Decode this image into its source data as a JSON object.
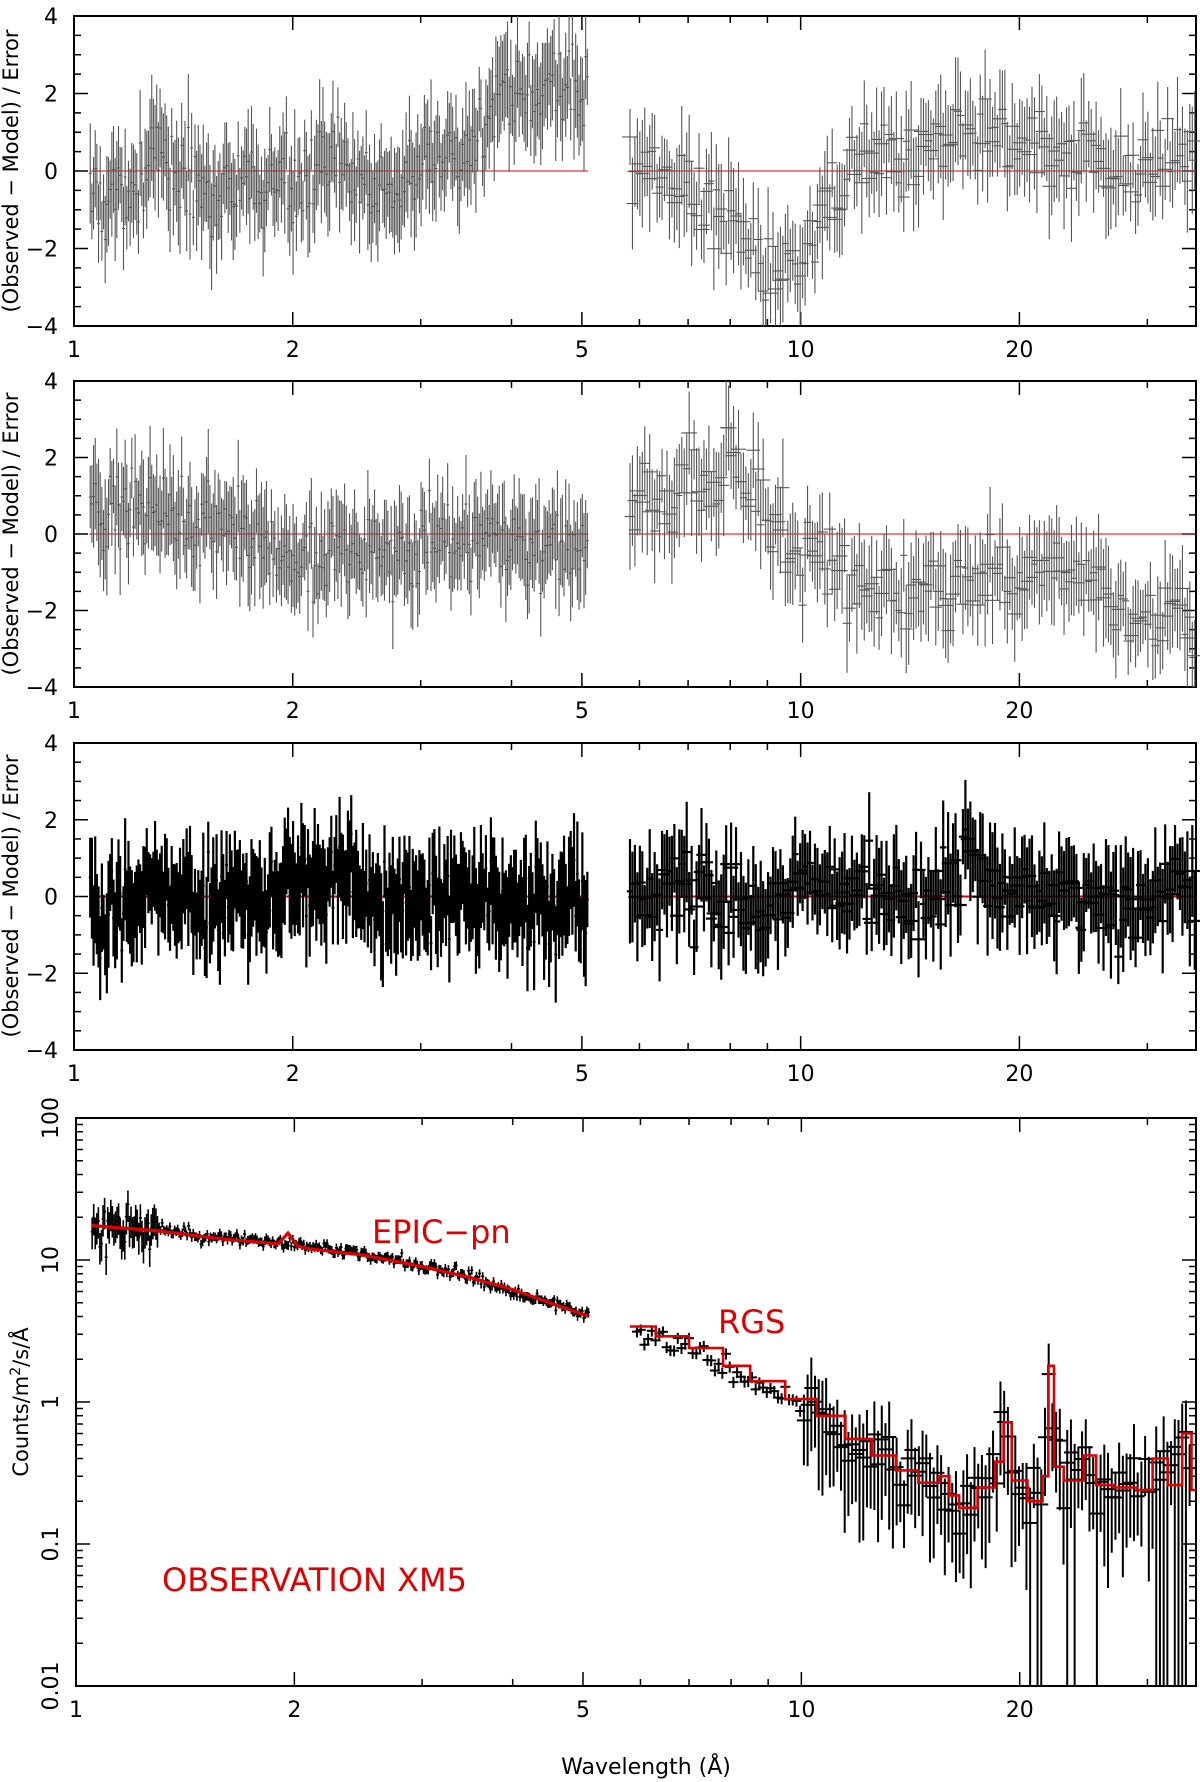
{
  "figure": {
    "x_label": "Wavelength (Å)",
    "residual_y_label": "(Observed − Model) / Error",
    "spectrum_y_label_html": "Counts/m²/s/Å",
    "annotations": {
      "epic": "EPIC−pn",
      "rgs": "RGS",
      "observation": "OBSERVATION XM5"
    },
    "colors": {
      "data": "#000000",
      "model": "#e00000",
      "residual_gray": "#555555"
    }
  },
  "chart_data": [
    {
      "type": "scatter",
      "panel": "residuals-1",
      "style": "gray error bars, thin",
      "xlabel": "",
      "ylabel": "(Observed − Model) / Error",
      "xscale": "log",
      "xlim": [
        1,
        35
      ],
      "ylim": [
        -4,
        4
      ],
      "xticks": [
        1,
        2,
        5,
        10,
        20
      ],
      "yticks": [
        -4,
        -2,
        0,
        2,
        4
      ],
      "zero_line": 0,
      "series": [
        {
          "instrument": "EPIC-pn",
          "x_range": [
            1.05,
            5.1
          ],
          "x": [
            1.1,
            1.3,
            1.5,
            1.7,
            2.0,
            2.3,
            2.6,
            3.0,
            3.4,
            3.8,
            4.2,
            4.6,
            5.0
          ],
          "y": [
            -0.8,
            0.3,
            -0.4,
            -0.6,
            -0.2,
            0.1,
            -0.5,
            0.0,
            0.4,
            1.6,
            2.0,
            2.4,
            2.0
          ]
        },
        {
          "instrument": "RGS",
          "x_range": [
            5.8,
            35
          ],
          "x": [
            6,
            7,
            8,
            9,
            10,
            12,
            14,
            17,
            20,
            24,
            28,
            32
          ],
          "y": [
            0.2,
            -0.5,
            -1.5,
            -2.5,
            -2.0,
            0.2,
            0.5,
            1.2,
            0.8,
            0.3,
            -0.2,
            0.2
          ]
        }
      ]
    },
    {
      "type": "scatter",
      "panel": "residuals-2",
      "style": "gray error bars, thin",
      "xlabel": "",
      "ylabel": "(Observed − Model) / Error",
      "xscale": "log",
      "xlim": [
        1,
        35
      ],
      "ylim": [
        -4,
        4
      ],
      "xticks": [
        1,
        2,
        5,
        10,
        20
      ],
      "yticks": [
        -4,
        -2,
        0,
        2,
        4
      ],
      "zero_line": 0,
      "series": [
        {
          "instrument": "EPIC-pn",
          "x_range": [
            1.05,
            5.1
          ],
          "x": [
            1.1,
            1.3,
            1.5,
            1.7,
            2.0,
            2.3,
            2.6,
            3.0,
            3.4,
            3.8,
            4.2,
            4.6,
            5.0
          ],
          "y": [
            0.6,
            0.8,
            0.3,
            0.0,
            -0.6,
            -0.3,
            -0.4,
            -0.5,
            -0.2,
            -0.2,
            -0.3,
            -0.1,
            -0.4
          ]
        },
        {
          "instrument": "RGS",
          "x_range": [
            5.8,
            35
          ],
          "x": [
            6,
            7,
            8,
            9,
            10,
            12,
            14,
            17,
            20,
            24,
            28,
            32
          ],
          "y": [
            0.5,
            1.2,
            1.8,
            0.5,
            -0.5,
            -1.2,
            -1.8,
            -1.0,
            -1.2,
            -0.8,
            -2.0,
            -2.2
          ]
        }
      ]
    },
    {
      "type": "scatter",
      "panel": "residuals-3",
      "style": "black error bars, thick",
      "xlabel": "",
      "ylabel": "(Observed − Model) / Error",
      "xscale": "log",
      "xlim": [
        1,
        35
      ],
      "ylim": [
        -4,
        4
      ],
      "xticks": [
        1,
        2,
        5,
        10,
        20
      ],
      "yticks": [
        -4,
        -2,
        0,
        2,
        4
      ],
      "zero_line": 0,
      "series": [
        {
          "instrument": "EPIC-pn",
          "x_range": [
            1.05,
            5.1
          ],
          "x": [
            1.1,
            1.3,
            1.5,
            1.7,
            2.0,
            2.3,
            2.6,
            3.0,
            3.4,
            3.8,
            4.2,
            4.6,
            5.0
          ],
          "y": [
            -0.4,
            0.4,
            0.0,
            -0.2,
            0.3,
            0.5,
            0.0,
            -0.3,
            0.1,
            0.2,
            -0.2,
            -0.3,
            -0.1
          ]
        },
        {
          "instrument": "RGS",
          "x_range": [
            5.8,
            35
          ],
          "x": [
            6,
            7,
            8,
            9,
            10,
            12,
            14,
            17,
            20,
            24,
            28,
            32
          ],
          "y": [
            0.0,
            0.3,
            -0.2,
            -0.4,
            0.2,
            0.4,
            -0.1,
            0.6,
            0.2,
            -0.3,
            -0.4,
            0.1
          ]
        }
      ]
    },
    {
      "type": "line",
      "panel": "spectrum",
      "xlabel": "Wavelength (Å)",
      "ylabel": "Counts/m²/s/Å",
      "xscale": "log",
      "yscale": "log",
      "xlim": [
        1,
        35
      ],
      "ylim": [
        0.01,
        100
      ],
      "xticks": [
        1,
        2,
        5,
        10,
        20
      ],
      "yticks": [
        0.01,
        0.1,
        1,
        10,
        100
      ],
      "series": [
        {
          "name": "EPIC−pn",
          "role": "model",
          "color": "#e00000",
          "style": "smooth line",
          "x": [
            1.05,
            1.3,
            1.6,
            1.9,
            1.96,
            2.02,
            2.1,
            2.5,
            3.0,
            3.5,
            4.0,
            4.5,
            5.1
          ],
          "y": [
            17.5,
            16.0,
            14.0,
            13.0,
            15.5,
            12.5,
            12.0,
            10.8,
            9.0,
            7.5,
            6.2,
            5.0,
            4.0
          ]
        },
        {
          "name": "RGS",
          "role": "model",
          "color": "#e00000",
          "style": "histogram step",
          "x": [
            5.8,
            6.3,
            7.0,
            7.8,
            8.5,
            9.5,
            10.5,
            11.5,
            12.5,
            13.5,
            14.5,
            15.5,
            16.0,
            16.5,
            17.5,
            18.5,
            19.0,
            19.5,
            20.5,
            21.5,
            21.9,
            22.3,
            23.0,
            24.5,
            25.5,
            27.0,
            29.0,
            30.5,
            32.0,
            33.5,
            34.5
          ],
          "y": [
            3.4,
            2.9,
            2.4,
            1.8,
            1.4,
            1.05,
            0.8,
            0.55,
            0.42,
            0.33,
            0.27,
            0.3,
            0.22,
            0.18,
            0.25,
            0.38,
            0.72,
            0.28,
            0.2,
            0.3,
            1.8,
            0.35,
            0.28,
            0.42,
            0.26,
            0.25,
            0.24,
            0.4,
            0.26,
            0.6,
            0.24
          ]
        },
        {
          "name": "EPIC−pn data",
          "role": "data",
          "color": "#000000",
          "x": [
            1.05,
            1.3,
            1.6,
            2.0,
            2.5,
            3.0,
            3.5,
            4.0,
            4.5,
            5.0
          ],
          "y": [
            16.0,
            16.5,
            14.0,
            13.0,
            11.0,
            9.2,
            7.6,
            6.0,
            5.0,
            4.2
          ]
        },
        {
          "name": "RGS data",
          "role": "data",
          "color": "#000000",
          "x": [
            6.0,
            7.0,
            8.0,
            9.0,
            10.0,
            12.0,
            13.2,
            15.0,
            17.0,
            19.0,
            21.5,
            25.0,
            30.0,
            33.0
          ],
          "y": [
            3.3,
            2.5,
            1.8,
            1.3,
            0.9,
            0.5,
            0.7,
            0.3,
            0.2,
            0.6,
            1.9,
            0.3,
            0.25,
            0.5
          ]
        }
      ]
    }
  ]
}
